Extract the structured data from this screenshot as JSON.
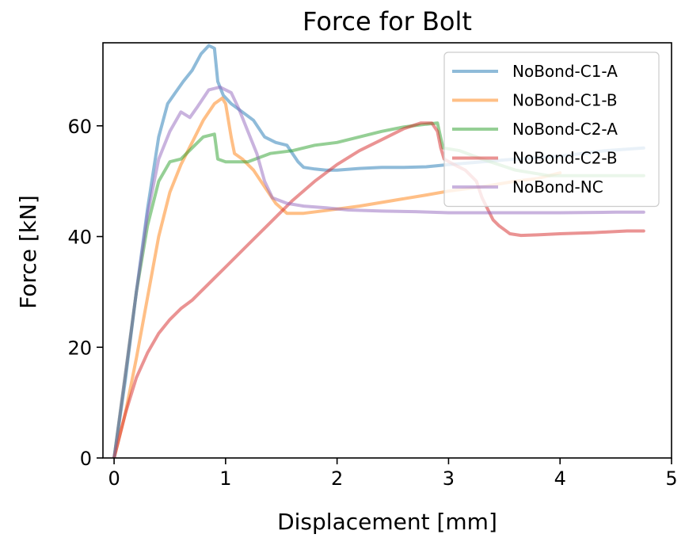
{
  "chart_data": {
    "type": "line",
    "title": "Force for Bolt",
    "xlabel": "Displacement [mm]",
    "ylabel": "Force [kN]",
    "xlim": [
      -0.1,
      5
    ],
    "ylim": [
      0,
      75
    ],
    "xticks": [
      0,
      1,
      2,
      3,
      4,
      5
    ],
    "yticks": [
      0,
      20,
      40,
      60
    ],
    "grid": false,
    "legend_position": "top-right",
    "series": [
      {
        "name": "NoBond-C1-A",
        "color": "#1f77b4",
        "points": [
          [
            0,
            0
          ],
          [
            0.1,
            14
          ],
          [
            0.2,
            30
          ],
          [
            0.3,
            45
          ],
          [
            0.4,
            58
          ],
          [
            0.48,
            64
          ],
          [
            0.55,
            66
          ],
          [
            0.62,
            68
          ],
          [
            0.7,
            70
          ],
          [
            0.78,
            73
          ],
          [
            0.85,
            74.5
          ],
          [
            0.9,
            74
          ],
          [
            0.93,
            68
          ],
          [
            0.98,
            65.5
          ],
          [
            1.05,
            64
          ],
          [
            1.15,
            62.5
          ],
          [
            1.25,
            61
          ],
          [
            1.35,
            58
          ],
          [
            1.45,
            57
          ],
          [
            1.55,
            56.5
          ],
          [
            1.6,
            55
          ],
          [
            1.65,
            53.5
          ],
          [
            1.7,
            52.5
          ],
          [
            1.8,
            52.2
          ],
          [
            1.9,
            52
          ],
          [
            2.0,
            52
          ],
          [
            2.2,
            52.3
          ],
          [
            2.4,
            52.5
          ],
          [
            2.6,
            52.5
          ],
          [
            2.8,
            52.6
          ],
          [
            3.0,
            53
          ],
          [
            3.3,
            53.5
          ],
          [
            3.6,
            54
          ],
          [
            4.0,
            54.5
          ],
          [
            4.4,
            55.5
          ],
          [
            4.75,
            56
          ]
        ]
      },
      {
        "name": "NoBond-C1-B",
        "color": "#ff7f0e",
        "points": [
          [
            0,
            0
          ],
          [
            0.1,
            8
          ],
          [
            0.2,
            18
          ],
          [
            0.3,
            29
          ],
          [
            0.4,
            40
          ],
          [
            0.5,
            48
          ],
          [
            0.6,
            53
          ],
          [
            0.7,
            57
          ],
          [
            0.8,
            61
          ],
          [
            0.9,
            64
          ],
          [
            0.97,
            65
          ],
          [
            1.0,
            64
          ],
          [
            1.05,
            58
          ],
          [
            1.08,
            55
          ],
          [
            1.15,
            54
          ],
          [
            1.25,
            52
          ],
          [
            1.35,
            49
          ],
          [
            1.45,
            46
          ],
          [
            1.55,
            44.2
          ],
          [
            1.7,
            44.2
          ],
          [
            1.9,
            44.7
          ],
          [
            2.2,
            45.5
          ],
          [
            2.5,
            46.5
          ],
          [
            2.8,
            47.5
          ],
          [
            3.0,
            48.2
          ],
          [
            3.3,
            49
          ],
          [
            3.6,
            50
          ],
          [
            3.8,
            50.5
          ],
          [
            4.0,
            51.5
          ]
        ]
      },
      {
        "name": "NoBond-C2-A",
        "color": "#2ca02c",
        "points": [
          [
            0,
            0
          ],
          [
            0.1,
            15
          ],
          [
            0.2,
            30
          ],
          [
            0.3,
            42
          ],
          [
            0.4,
            50
          ],
          [
            0.5,
            53.5
          ],
          [
            0.6,
            54
          ],
          [
            0.7,
            56
          ],
          [
            0.8,
            58
          ],
          [
            0.9,
            58.5
          ],
          [
            0.93,
            54
          ],
          [
            1.0,
            53.5
          ],
          [
            1.2,
            53.5
          ],
          [
            1.4,
            55
          ],
          [
            1.6,
            55.5
          ],
          [
            1.8,
            56.5
          ],
          [
            2.0,
            57
          ],
          [
            2.2,
            58
          ],
          [
            2.4,
            59
          ],
          [
            2.6,
            59.8
          ],
          [
            2.8,
            60.3
          ],
          [
            2.9,
            60.5
          ],
          [
            2.95,
            56
          ],
          [
            3.1,
            55.5
          ],
          [
            3.3,
            54
          ],
          [
            3.6,
            52
          ],
          [
            3.9,
            51
          ],
          [
            4.2,
            51
          ],
          [
            4.5,
            51
          ],
          [
            4.75,
            51
          ]
        ]
      },
      {
        "name": "NoBond-C2-B",
        "color": "#d62728",
        "points": [
          [
            0,
            0
          ],
          [
            0.1,
            8
          ],
          [
            0.2,
            14.5
          ],
          [
            0.3,
            19
          ],
          [
            0.4,
            22.5
          ],
          [
            0.5,
            25
          ],
          [
            0.6,
            27
          ],
          [
            0.7,
            28.5
          ],
          [
            0.8,
            30.5
          ],
          [
            0.9,
            32.5
          ],
          [
            1.0,
            34.5
          ],
          [
            1.2,
            38.5
          ],
          [
            1.4,
            42.5
          ],
          [
            1.6,
            46.5
          ],
          [
            1.8,
            50
          ],
          [
            2.0,
            53
          ],
          [
            2.2,
            55.5
          ],
          [
            2.4,
            57.5
          ],
          [
            2.6,
            59.5
          ],
          [
            2.75,
            60.5
          ],
          [
            2.85,
            60.5
          ],
          [
            2.9,
            59
          ],
          [
            2.93,
            56
          ],
          [
            2.96,
            54
          ],
          [
            3.05,
            53
          ],
          [
            3.15,
            52
          ],
          [
            3.25,
            50
          ],
          [
            3.3,
            47
          ],
          [
            3.35,
            45
          ],
          [
            3.4,
            43
          ],
          [
            3.45,
            42
          ],
          [
            3.55,
            40.5
          ],
          [
            3.65,
            40.2
          ],
          [
            3.8,
            40.3
          ],
          [
            4.0,
            40.5
          ],
          [
            4.3,
            40.7
          ],
          [
            4.6,
            41
          ],
          [
            4.75,
            41
          ]
        ]
      },
      {
        "name": "NoBond-NC",
        "color": "#9467bd",
        "points": [
          [
            0,
            0
          ],
          [
            0.1,
            15
          ],
          [
            0.2,
            30
          ],
          [
            0.3,
            44
          ],
          [
            0.4,
            54
          ],
          [
            0.5,
            59
          ],
          [
            0.6,
            62.5
          ],
          [
            0.68,
            61.5
          ],
          [
            0.75,
            63.5
          ],
          [
            0.85,
            66.5
          ],
          [
            0.95,
            67
          ],
          [
            1.05,
            66
          ],
          [
            1.12,
            63
          ],
          [
            1.2,
            59
          ],
          [
            1.28,
            55
          ],
          [
            1.35,
            50
          ],
          [
            1.42,
            47
          ],
          [
            1.55,
            46
          ],
          [
            1.7,
            45.5
          ],
          [
            1.9,
            45.2
          ],
          [
            2.1,
            44.8
          ],
          [
            2.4,
            44.6
          ],
          [
            2.7,
            44.5
          ],
          [
            3.0,
            44.3
          ],
          [
            3.5,
            44.3
          ],
          [
            4.0,
            44.3
          ],
          [
            4.5,
            44.4
          ],
          [
            4.75,
            44.4
          ]
        ]
      }
    ]
  }
}
